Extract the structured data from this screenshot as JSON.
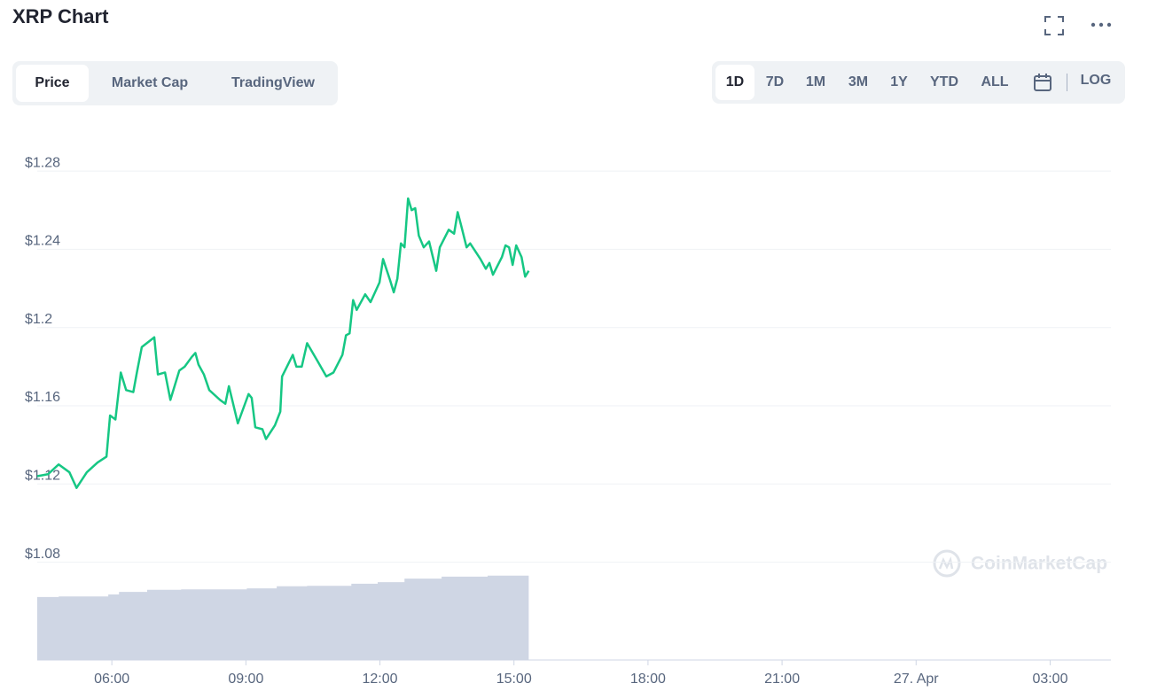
{
  "header": {
    "title": "XRP Chart"
  },
  "tabs": [
    "Price",
    "Market Cap",
    "TradingView"
  ],
  "ranges": [
    "1D",
    "7D",
    "1M",
    "3M",
    "1Y",
    "YTD",
    "ALL"
  ],
  "log_button": "LOG",
  "watermark": "CoinMarketCap",
  "chart_data": {
    "type": "line",
    "grid": true,
    "xlim": [
      4.33,
      28.36
    ],
    "xticks": [
      {
        "value": 6,
        "label": "06:00"
      },
      {
        "value": 9,
        "label": "09:00"
      },
      {
        "value": 12,
        "label": "12:00"
      },
      {
        "value": 15,
        "label": "15:00"
      },
      {
        "value": 18,
        "label": "18:00"
      },
      {
        "value": 21,
        "label": "21:00"
      },
      {
        "value": 24,
        "label": "27. Apr"
      },
      {
        "value": 27,
        "label": "03:00"
      }
    ],
    "ylim": [
      1.03,
      1.29
    ],
    "yticks": [
      {
        "value": 1.28,
        "label": "$1.28"
      },
      {
        "value": 1.24,
        "label": "$1.24"
      },
      {
        "value": 1.2,
        "label": "$1.2"
      },
      {
        "value": 1.16,
        "label": "$1.16"
      },
      {
        "value": 1.12,
        "label": "$1.12"
      },
      {
        "value": 1.08,
        "label": "$1.08"
      }
    ],
    "y2lim": [
      0,
      100
    ],
    "series": [
      {
        "color": "#16c784",
        "x": [
          4.33,
          4.57,
          4.81,
          5.05,
          5.21,
          5.44,
          5.68,
          5.88,
          5.96,
          6.08,
          6.2,
          6.32,
          6.48,
          6.56,
          6.67,
          6.95,
          7.03,
          7.19,
          7.31,
          7.51,
          7.63,
          7.79,
          7.87,
          7.94,
          8.06,
          8.18,
          8.42,
          8.54,
          8.62,
          8.82,
          9.06,
          9.13,
          9.21,
          9.37,
          9.45,
          9.65,
          9.77,
          9.81,
          10.05,
          10.13,
          10.25,
          10.37,
          10.6,
          10.8,
          10.96,
          11.16,
          11.24,
          11.32,
          11.4,
          11.48,
          11.67,
          11.79,
          11.99,
          12.07,
          12.23,
          12.31,
          12.39,
          12.47,
          12.55,
          12.63,
          12.71,
          12.79,
          12.87,
          12.98,
          13.1,
          13.26,
          13.34,
          13.54,
          13.66,
          13.74,
          13.82,
          13.94,
          14.02,
          14.25,
          14.37,
          14.45,
          14.53,
          14.73,
          14.81,
          14.89,
          14.97,
          15.05,
          15.17,
          15.25,
          15.33
        ],
        "values": [
          1.124,
          1.125,
          1.13,
          1.126,
          1.118,
          1.126,
          1.131,
          1.134,
          1.155,
          1.153,
          1.177,
          1.168,
          1.167,
          1.177,
          1.19,
          1.195,
          1.176,
          1.177,
          1.163,
          1.178,
          1.18,
          1.185,
          1.187,
          1.181,
          1.176,
          1.168,
          1.163,
          1.161,
          1.17,
          1.151,
          1.166,
          1.164,
          1.149,
          1.148,
          1.143,
          1.15,
          1.157,
          1.175,
          1.186,
          1.18,
          1.18,
          1.192,
          1.183,
          1.175,
          1.177,
          1.186,
          1.196,
          1.197,
          1.214,
          1.209,
          1.217,
          1.213,
          1.223,
          1.235,
          1.224,
          1.218,
          1.225,
          1.243,
          1.241,
          1.266,
          1.26,
          1.261,
          1.247,
          1.241,
          1.244,
          1.229,
          1.241,
          1.25,
          1.248,
          1.259,
          1.252,
          1.241,
          1.243,
          1.235,
          1.23,
          1.233,
          1.227,
          1.236,
          1.242,
          1.241,
          1.232,
          1.242,
          1.236,
          1.226,
          1.229
        ]
      },
      {
        "type": "area",
        "axis": "y2",
        "color": "#cfd6e4",
        "x": [
          4.33,
          4.81,
          5.92,
          6.16,
          6.79,
          7.55,
          9.02,
          9.69,
          10.37,
          11.36,
          11.95,
          12.55,
          13.38,
          14.41,
          15.33
        ],
        "values": [
          12.4,
          12.5,
          12.9,
          13.4,
          13.8,
          13.9,
          14.1,
          14.5,
          14.6,
          15.0,
          15.3,
          16.0,
          16.4,
          16.6,
          16.6
        ]
      }
    ]
  }
}
